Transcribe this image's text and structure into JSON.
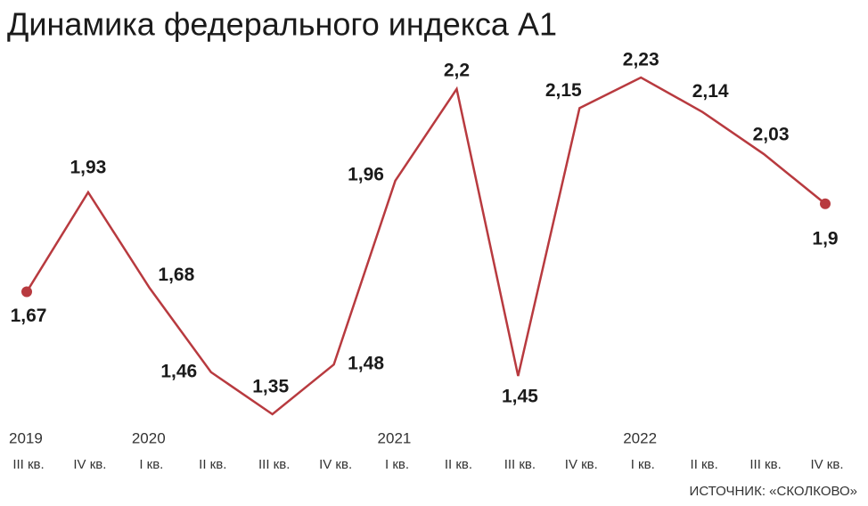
{
  "chart_data": {
    "type": "line",
    "title": "Динамика федерального индекса А1",
    "source": "ИСТОЧНИК: «СКОЛКОВО»",
    "categories": [
      "III кв.",
      "IV кв.",
      "I кв.",
      "II кв.",
      "III кв.",
      "IV кв.",
      "I кв.",
      "II кв.",
      "III кв.",
      "IV кв.",
      "I кв.",
      "II кв.",
      "III кв.",
      "IV кв."
    ],
    "years": [
      "2019",
      null,
      "2020",
      null,
      null,
      null,
      "2021",
      null,
      null,
      null,
      "2022",
      null,
      null,
      null
    ],
    "color": "#b83a3f",
    "values": [
      1.67,
      1.93,
      1.68,
      1.46,
      1.35,
      1.48,
      1.96,
      2.2,
      1.45,
      2.15,
      2.23,
      2.14,
      2.03,
      1.9
    ],
    "value_labels": [
      "1,67",
      "1,93",
      "1,68",
      "1,46",
      "1,35",
      "1,48",
      "1,96",
      "2,2",
      "1,45",
      "2,15",
      "2,23",
      "2,14",
      "2,03",
      "1,9"
    ]
  }
}
